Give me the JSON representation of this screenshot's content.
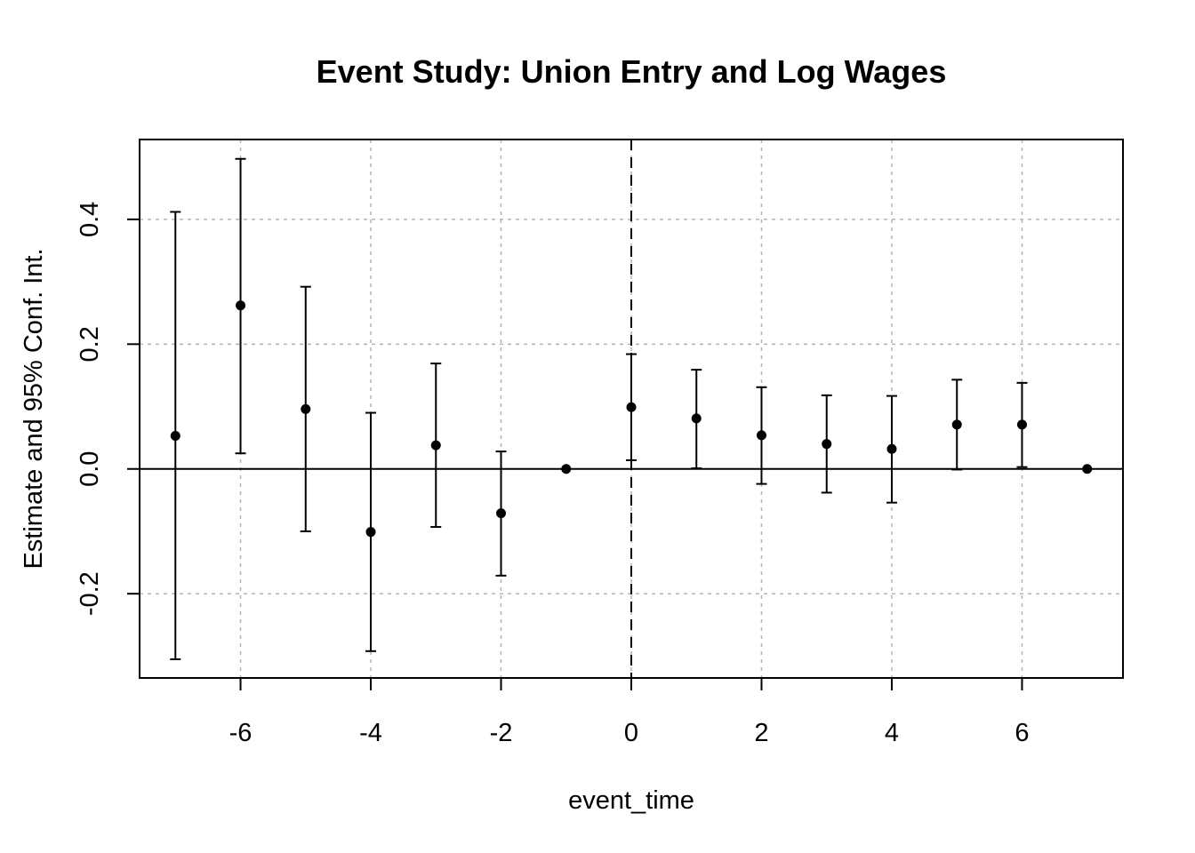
{
  "chart_data": {
    "type": "scatter",
    "title": "Event Study: Union Entry and Log Wages",
    "xlabel": "event_time",
    "ylabel": "Estimate and 95% Conf. Int.",
    "xlim": [
      -7.55,
      7.55
    ],
    "ylim": [
      -0.335,
      0.528
    ],
    "x_ticks": [
      -6,
      -4,
      -2,
      0,
      2,
      4,
      6
    ],
    "x_tick_labels": [
      "-6",
      "-4",
      "-2",
      "0",
      "2",
      "4",
      "6"
    ],
    "y_ticks": [
      -0.2,
      0.0,
      0.2,
      0.4
    ],
    "y_tick_labels": [
      "-0.2",
      "0.0",
      "0.2",
      "0.4"
    ],
    "grid": true,
    "reference_lines": {
      "horizontal": 0,
      "vertical": 0
    },
    "points": [
      {
        "x": -7,
        "estimate": 0.053,
        "ci_low": -0.305,
        "ci_high": 0.412
      },
      {
        "x": -6,
        "estimate": 0.262,
        "ci_low": 0.025,
        "ci_high": 0.497
      },
      {
        "x": -5,
        "estimate": 0.096,
        "ci_low": -0.1,
        "ci_high": 0.292
      },
      {
        "x": -4,
        "estimate": -0.101,
        "ci_low": -0.292,
        "ci_high": 0.09
      },
      {
        "x": -3,
        "estimate": 0.038,
        "ci_low": -0.093,
        "ci_high": 0.169
      },
      {
        "x": -2,
        "estimate": -0.071,
        "ci_low": -0.171,
        "ci_high": 0.028
      },
      {
        "x": -1,
        "estimate": 0.0,
        "ci_low": null,
        "ci_high": null
      },
      {
        "x": 0,
        "estimate": 0.099,
        "ci_low": 0.014,
        "ci_high": 0.184
      },
      {
        "x": 1,
        "estimate": 0.081,
        "ci_low": 0.001,
        "ci_high": 0.159
      },
      {
        "x": 2,
        "estimate": 0.054,
        "ci_low": -0.024,
        "ci_high": 0.131
      },
      {
        "x": 3,
        "estimate": 0.04,
        "ci_low": -0.038,
        "ci_high": 0.118
      },
      {
        "x": 4,
        "estimate": 0.032,
        "ci_low": -0.054,
        "ci_high": 0.117
      },
      {
        "x": 5,
        "estimate": 0.071,
        "ci_low": -0.001,
        "ci_high": 0.143
      },
      {
        "x": 6,
        "estimate": 0.071,
        "ci_low": 0.003,
        "ci_high": 0.138
      },
      {
        "x": 7,
        "estimate": 0.0,
        "ci_low": null,
        "ci_high": null
      }
    ],
    "colors": {
      "points": "#000000",
      "grid": "#b3b3b3"
    }
  }
}
